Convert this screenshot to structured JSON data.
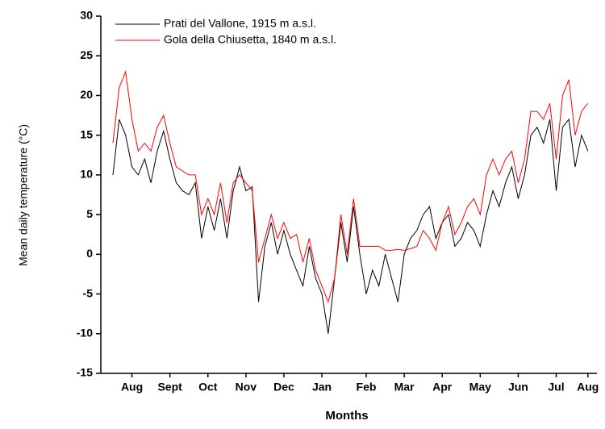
{
  "chart_data": {
    "type": "line",
    "y_label": "Mean daily temperature (°C)",
    "x_label": "Months",
    "categories": [
      null,
      null,
      null,
      "Aug",
      null,
      null,
      null,
      null,
      null,
      "Sept",
      null,
      null,
      null,
      null,
      null,
      "Oct",
      null,
      null,
      null,
      null,
      null,
      "Nov",
      null,
      null,
      null,
      null,
      null,
      "Dec",
      null,
      null,
      null,
      null,
      null,
      "Jan",
      null,
      null,
      null,
      null,
      null,
      null,
      "Feb",
      null,
      null,
      null,
      null,
      null,
      "Mar",
      null,
      null,
      null,
      null,
      null,
      "Apr",
      null,
      null,
      null,
      null,
      null,
      "May",
      null,
      null,
      null,
      null,
      null,
      "Jun",
      null,
      null,
      null,
      null,
      null,
      "Jul",
      null,
      null,
      null,
      null,
      "Aug"
    ],
    "series": [
      {
        "name": "Prati del Vallone, 1915 m a.s.l.",
        "color": "#000000",
        "values": [
          10,
          17,
          15,
          11,
          10,
          12,
          9,
          13,
          15.5,
          12,
          9,
          8,
          7.5,
          9,
          2,
          6,
          3,
          7,
          2,
          8,
          11,
          8,
          8.5,
          -6,
          1,
          4,
          0,
          3,
          0,
          -2,
          -4,
          1,
          -3,
          -5,
          -10,
          -3,
          4,
          -1,
          6,
          0,
          -5,
          -2,
          -4,
          0,
          -3,
          -6,
          0,
          2,
          3,
          5,
          6,
          2,
          4,
          5,
          1,
          2,
          4,
          3,
          1,
          5,
          8,
          6,
          9,
          11,
          7,
          10,
          15,
          16,
          14,
          17,
          8,
          16,
          17,
          11,
          15,
          13
        ]
      },
      {
        "name": "Gola della Chiusetta, 1840 m a.s.l.",
        "color": "#ff0000",
        "values": [
          14,
          21,
          23,
          17,
          13,
          14,
          13,
          16,
          17.5,
          14,
          11,
          10.5,
          10,
          10,
          5,
          7,
          5,
          9,
          4,
          9,
          10,
          9,
          8,
          -1,
          2,
          5,
          2,
          4,
          2,
          2.5,
          -1,
          2,
          -2,
          -4,
          -6,
          -3,
          5,
          0,
          7,
          1,
          1,
          1,
          1,
          0.5,
          0.5,
          0.6,
          0.5,
          0.7,
          1,
          3,
          2,
          0.5,
          4,
          6,
          2.5,
          4,
          6,
          7,
          5,
          10,
          12,
          10,
          12,
          13,
          9,
          12,
          18,
          18,
          17,
          19,
          12,
          20,
          22,
          15,
          18,
          19
        ]
      }
    ],
    "ylim": [
      -15,
      30
    ],
    "yticks": [
      -15,
      -10,
      -5,
      0,
      5,
      10,
      15,
      20,
      25,
      30
    ]
  }
}
